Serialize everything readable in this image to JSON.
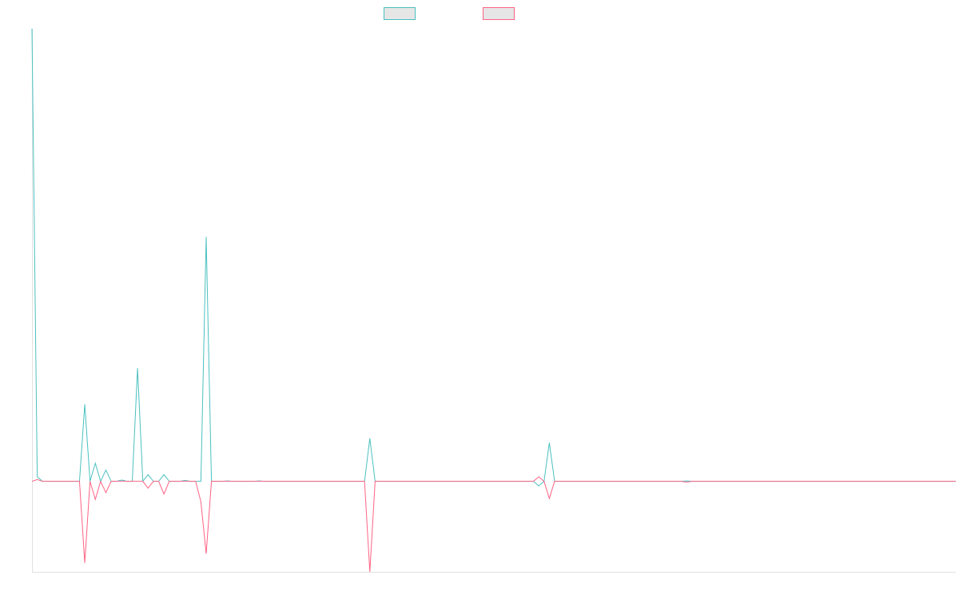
{
  "chart_data": {
    "type": "line",
    "title": "",
    "xlabel": "",
    "ylabel": "",
    "legend_position": "top",
    "grid": false,
    "x_count": 176,
    "ylim": [
      -20,
      100
    ],
    "series": [
      {
        "name": "",
        "color": "#4bc0c0",
        "points": [
          [
            0,
            100
          ],
          [
            1,
            1
          ],
          [
            10,
            17
          ],
          [
            12,
            4
          ],
          [
            14,
            2.5
          ],
          [
            17,
            0.3
          ],
          [
            20,
            25
          ],
          [
            22,
            1.5
          ],
          [
            25,
            1.5
          ],
          [
            29,
            0.2
          ],
          [
            33,
            54
          ],
          [
            37,
            0.1
          ],
          [
            43,
            0.1
          ],
          [
            64,
            9.5
          ],
          [
            96,
            -1
          ],
          [
            98,
            8.5
          ],
          [
            124,
            0.1
          ]
        ]
      },
      {
        "name": "",
        "color": "#ff6384",
        "points": [
          [
            1,
            0.4
          ],
          [
            10,
            -18
          ],
          [
            12,
            -4
          ],
          [
            14,
            -2.5
          ],
          [
            22,
            -1.5
          ],
          [
            25,
            -2.8
          ],
          [
            32,
            -4.5
          ],
          [
            33,
            -16
          ],
          [
            64,
            -20
          ],
          [
            96,
            1
          ],
          [
            98,
            -3.8
          ],
          [
            124,
            -0.2
          ]
        ]
      }
    ]
  }
}
